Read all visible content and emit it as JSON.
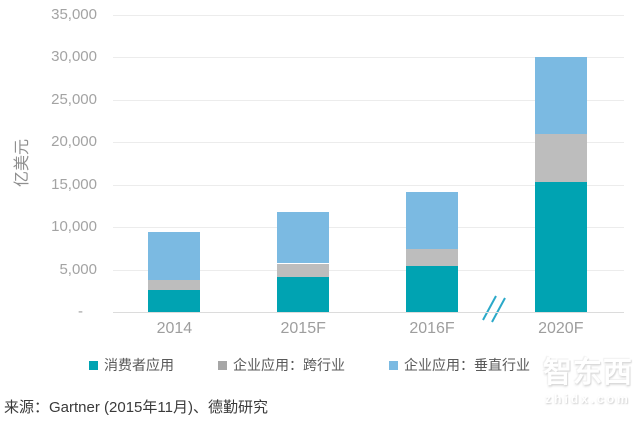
{
  "chart_data": {
    "type": "bar",
    "stacked": true,
    "title": "",
    "ylabel": "亿美元",
    "xlabel": "",
    "ylim": [
      0,
      35000
    ],
    "grid": true,
    "legend_position": "bottom",
    "categories": [
      "2014",
      "2015F",
      "2016F",
      "2020F"
    ],
    "series": [
      {
        "name": "消费者应用",
        "color": "#00a3b2",
        "values": [
          2570,
          4160,
          5460,
          15340
        ]
      },
      {
        "name": "企业应用：跨行业",
        "color": "#bdbdbd",
        "legend_color": "#a6a6a6",
        "values": [
          1150,
          1550,
          2010,
          5660
        ]
      },
      {
        "name": "企业应用：垂直行业",
        "color": "#7bbae2",
        "values": [
          5670,
          6120,
          6670,
          9110
        ]
      }
    ],
    "totals": [
      9390,
      11830,
      14140,
      30110
    ],
    "yticks": [
      {
        "label": "35,000",
        "value": 35000
      },
      {
        "label": "30,000",
        "value": 30000
      },
      {
        "label": "25,000",
        "value": 25000
      },
      {
        "label": "20,000",
        "value": 20000
      },
      {
        "label": "15,000",
        "value": 15000
      },
      {
        "label": "10,000",
        "value": 10000
      },
      {
        "label": "5,000",
        "value": 5000
      },
      {
        "label": "-",
        "value": 0
      }
    ],
    "axis_break_between": [
      "2016F",
      "2020F"
    ],
    "axis_break_color": "#2ba9c9"
  },
  "source": "来源：Gartner (2015年11月)、德勤研究",
  "watermark": {
    "logo_text": "智东西",
    "url_text": "zhidx.com"
  }
}
